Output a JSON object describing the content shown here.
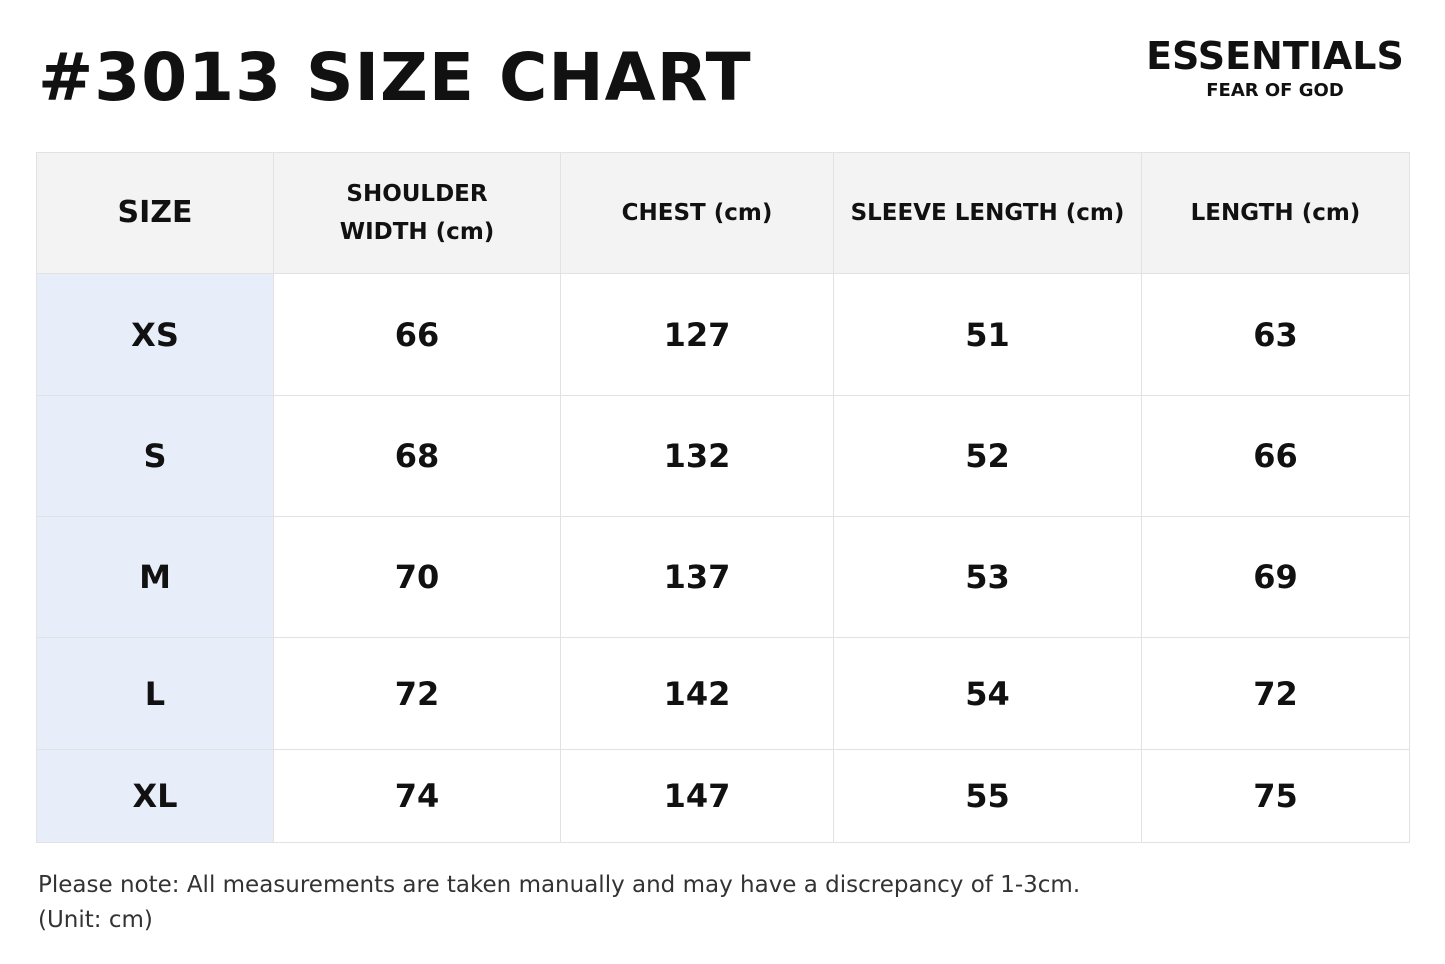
{
  "header": {
    "title": "#3013 SIZE CHART",
    "brand": "ESSENTIALS",
    "subbrand": "FEAR OF GOD"
  },
  "table": {
    "columns": [
      "SIZE",
      "SHOULDER WIDTH (cm)",
      "CHEST (cm)",
      "SLEEVE LENGTH (cm)",
      "LENGTH (cm)"
    ],
    "rows": [
      [
        "XS",
        66,
        127,
        51,
        63
      ],
      [
        "S",
        68,
        132,
        52,
        66
      ],
      [
        "M",
        70,
        137,
        53,
        69
      ],
      [
        "L",
        72,
        142,
        54,
        72
      ],
      [
        "XL",
        74,
        147,
        55,
        75
      ]
    ]
  },
  "notes": [
    "Please note: All measurements are taken manually and may have a discrepancy of 1-3cm.",
    "(Unit: cm)"
  ]
}
